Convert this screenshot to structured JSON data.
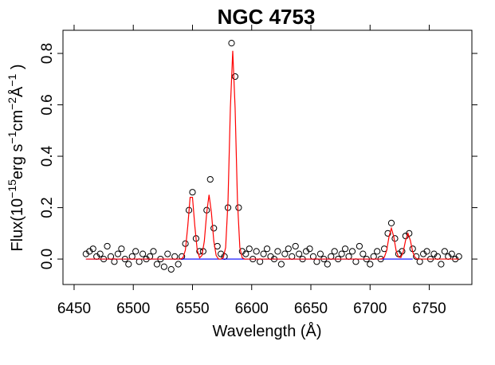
{
  "chart_data": {
    "type": "scatter",
    "title": "NGC 4753",
    "xlabel": "Wavelength (Å)",
    "ylabel": [
      {
        "text": "Flux(10"
      },
      {
        "text": "−15",
        "sup": true
      },
      {
        "text": "erg s"
      },
      {
        "text": "−1",
        "sup": true
      },
      {
        "text": "cm"
      },
      {
        "text": "−2",
        "sup": true
      },
      {
        "text": "Å"
      },
      {
        "text": "−1",
        "sup": true
      },
      {
        "text": " )"
      }
    ],
    "xlim": [
      6440.6,
      6786
    ],
    "ylim": [
      -0.099,
      0.89
    ],
    "xticks": [
      6450,
      6500,
      6550,
      6600,
      6650,
      6700,
      6750
    ],
    "yticks": [
      {
        "value": 0,
        "label": "0.0"
      },
      {
        "value": 0.2,
        "label": "0.2"
      },
      {
        "value": 0.4,
        "label": "0.4"
      },
      {
        "value": 0.6,
        "label": "0.6"
      },
      {
        "value": 0.8,
        "label": "0.8"
      }
    ],
    "series": [
      {
        "style": "points",
        "color": "#000000",
        "x": [
          6460,
          6463,
          6466,
          6469,
          6472,
          6475,
          6478,
          6481,
          6484,
          6487,
          6490,
          6493,
          6496,
          6499,
          6502,
          6505,
          6508,
          6511,
          6514,
          6517,
          6520,
          6523,
          6526,
          6529,
          6532,
          6535,
          6538,
          6541,
          6544,
          6547,
          6550,
          6553,
          6556,
          6559,
          6562,
          6565,
          6568,
          6571,
          6574,
          6577,
          6580,
          6583,
          6586,
          6589,
          6592,
          6595,
          6598,
          6601,
          6604,
          6607,
          6610,
          6613,
          6616,
          6619,
          6622,
          6625,
          6628,
          6631,
          6634,
          6637,
          6640,
          6643,
          6646,
          6649,
          6652,
          6655,
          6658,
          6661,
          6664,
          6667,
          6670,
          6673,
          6676,
          6679,
          6682,
          6685,
          6688,
          6691,
          6694,
          6697,
          6700,
          6703,
          6706,
          6709,
          6712,
          6715,
          6718,
          6721,
          6724,
          6727,
          6730,
          6733,
          6736,
          6739,
          6742,
          6745,
          6748,
          6751,
          6754,
          6757,
          6760,
          6763,
          6766,
          6769,
          6772,
          6775
        ],
        "values": [
          0.02,
          0.03,
          0.04,
          0.01,
          0.02,
          0.0,
          0.05,
          0.01,
          -0.01,
          0.02,
          0.04,
          0.0,
          -0.02,
          0.01,
          0.03,
          -0.01,
          0.02,
          0.0,
          0.01,
          0.03,
          -0.02,
          0.0,
          -0.03,
          0.02,
          -0.04,
          0.01,
          -0.02,
          0.01,
          0.06,
          0.19,
          0.26,
          0.08,
          0.03,
          0.03,
          0.19,
          0.31,
          0.12,
          0.05,
          0.02,
          0.01,
          0.2,
          0.84,
          0.71,
          0.2,
          0.03,
          0.02,
          0.04,
          0.0,
          0.03,
          -0.01,
          0.02,
          0.04,
          0.01,
          0.0,
          0.03,
          -0.02,
          0.02,
          0.04,
          0.01,
          0.05,
          0.02,
          0.0,
          0.03,
          0.04,
          0.01,
          -0.01,
          0.02,
          0.0,
          -0.02,
          0.01,
          0.03,
          0.0,
          0.02,
          0.04,
          0.01,
          0.03,
          -0.01,
          0.05,
          0.02,
          0.0,
          -0.02,
          0.01,
          0.03,
          0.0,
          0.04,
          0.1,
          0.14,
          0.08,
          0.02,
          0.03,
          0.09,
          0.1,
          0.04,
          0.01,
          -0.01,
          0.02,
          0.03,
          0.0,
          0.02,
          0.01,
          -0.02,
          0.03,
          0.01,
          0.02,
          0.0,
          0.01
        ]
      },
      {
        "style": "line",
        "color": "#0000ff",
        "x": [
          6460,
          6736
        ],
        "values": [
          0,
          0
        ]
      },
      {
        "style": "line",
        "color": "#ff0000",
        "x": [
          6460,
          6538,
          6540,
          6542,
          6544,
          6546,
          6548,
          6550,
          6552,
          6554,
          6556,
          6558,
          6560,
          6562,
          6564,
          6566,
          6568,
          6570,
          6572,
          6574,
          6576,
          6578,
          6580,
          6582,
          6584,
          6586,
          6588,
          6590,
          6592,
          6594,
          6600,
          6708,
          6710,
          6712,
          6714,
          6716,
          6718,
          6720,
          6722,
          6724,
          6726,
          6728,
          6730,
          6732,
          6734,
          6736,
          6738,
          6740,
          6775
        ],
        "values": [
          0,
          0,
          0,
          0.005,
          0.035,
          0.127,
          0.24,
          0.24,
          0.127,
          0.035,
          0.005,
          0.014,
          0.07,
          0.18,
          0.25,
          0.18,
          0.07,
          0.014,
          0,
          0,
          0.005,
          0.045,
          0.225,
          0.588,
          0.81,
          0.588,
          0.225,
          0.045,
          0.005,
          0,
          0,
          0,
          0.001,
          0.007,
          0.033,
          0.087,
          0.12,
          0.087,
          0.033,
          0.008,
          0.006,
          0.028,
          0.073,
          0.1,
          0.073,
          0.028,
          0.006,
          0,
          0
        ]
      }
    ]
  }
}
